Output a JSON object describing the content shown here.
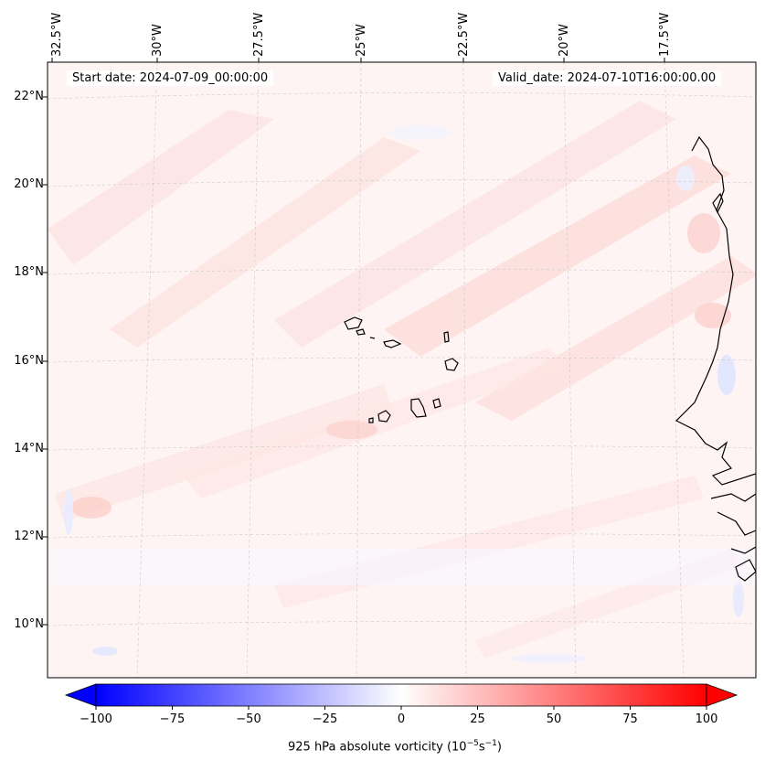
{
  "header": {
    "start_date": "Start date: 2024-07-09_00:00:00",
    "valid_date": "Valid_date: 2024-07-10T16:00:00.00"
  },
  "axes": {
    "longitude_labels": [
      "32.5°W",
      "30°W",
      "27.5°W",
      "25°W",
      "22.5°W",
      "20°W",
      "17.5°W"
    ],
    "latitude_labels": [
      "22°N",
      "20°N",
      "18°N",
      "16°N",
      "14°N",
      "12°N",
      "10°N"
    ]
  },
  "colorbar": {
    "label_main": "925 hPa absolute vorticity (10",
    "label_exp1": "−5",
    "label_mid": "s",
    "label_exp2": "−1",
    "label_end": ")",
    "ticks": [
      "−100",
      "−75",
      "−50",
      "−25",
      "0",
      "25",
      "50",
      "75",
      "100"
    ],
    "min": -100,
    "max": 100,
    "colors": {
      "negative": "#0000ff",
      "neutral": "#ffffff",
      "positive": "#ff0000"
    }
  },
  "map": {
    "field": "925 hPa absolute vorticity",
    "background_color": "#fef6f5",
    "coast_color": "#000000"
  }
}
